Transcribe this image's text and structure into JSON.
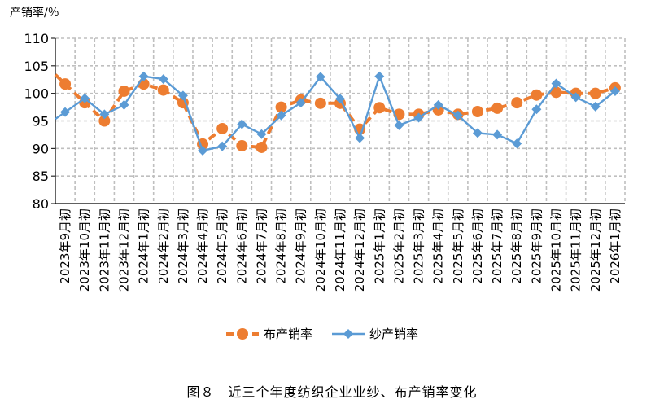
{
  "chart_data": {
    "type": "line",
    "ylabel": "产销率/％",
    "ylim": [
      80,
      110
    ],
    "yticks": [
      80,
      85,
      90,
      95,
      100,
      105,
      110
    ],
    "grid": true,
    "legend_position": "bottom",
    "categories": [
      "2023年9月初",
      "2023年10月初",
      "2023年11月初",
      "2023年12月初",
      "2024年1月初",
      "2024年2月初",
      "2024年3月初",
      "2024年4月初",
      "2024年5月初",
      "2024年6月初",
      "2024年7月初",
      "2024年8月初",
      "2024年9月初",
      "2024年10月初",
      "2024年11月初",
      "2024年12月初",
      "2025年1月初",
      "2025年2月初",
      "2025年3月初",
      "2025年4月初",
      "2025年5月初",
      "2025年6月初",
      "2025年7月初",
      "2025年8月初",
      "2025年9月初",
      "2025年10月初",
      "2025年11月初",
      "2025年12月初",
      "2026年1月初"
    ],
    "series": [
      {
        "name": "布产销率",
        "color": "#ED7D31",
        "style": "dashed",
        "marker": "circle",
        "values": [
          101.7,
          98.3,
          95.0,
          100.4,
          101.7,
          100.6,
          98.3,
          90.8,
          93.6,
          90.5,
          90.2,
          97.5,
          98.8,
          98.2,
          98.2,
          93.5,
          97.4,
          96.2,
          96.2,
          97.0,
          96.2,
          96.7,
          97.3,
          98.3,
          99.7,
          100.2,
          100.0,
          100.0,
          101.0
        ]
      },
      {
        "name": "纱产销率",
        "color": "#5B9BD5",
        "style": "solid",
        "marker": "diamond",
        "values": [
          96.6,
          99.1,
          96.2,
          97.9,
          103.1,
          102.6,
          99.6,
          89.6,
          90.4,
          94.4,
          92.6,
          96.0,
          98.3,
          103.0,
          99.0,
          91.9,
          103.1,
          94.2,
          95.6,
          97.9,
          96.0,
          92.8,
          92.5,
          90.9,
          97.1,
          101.8,
          99.3,
          97.6,
          100.4
        ]
      }
    ],
    "caption": "图８　近三个年度纺织企业业纱、布产销率变化"
  }
}
